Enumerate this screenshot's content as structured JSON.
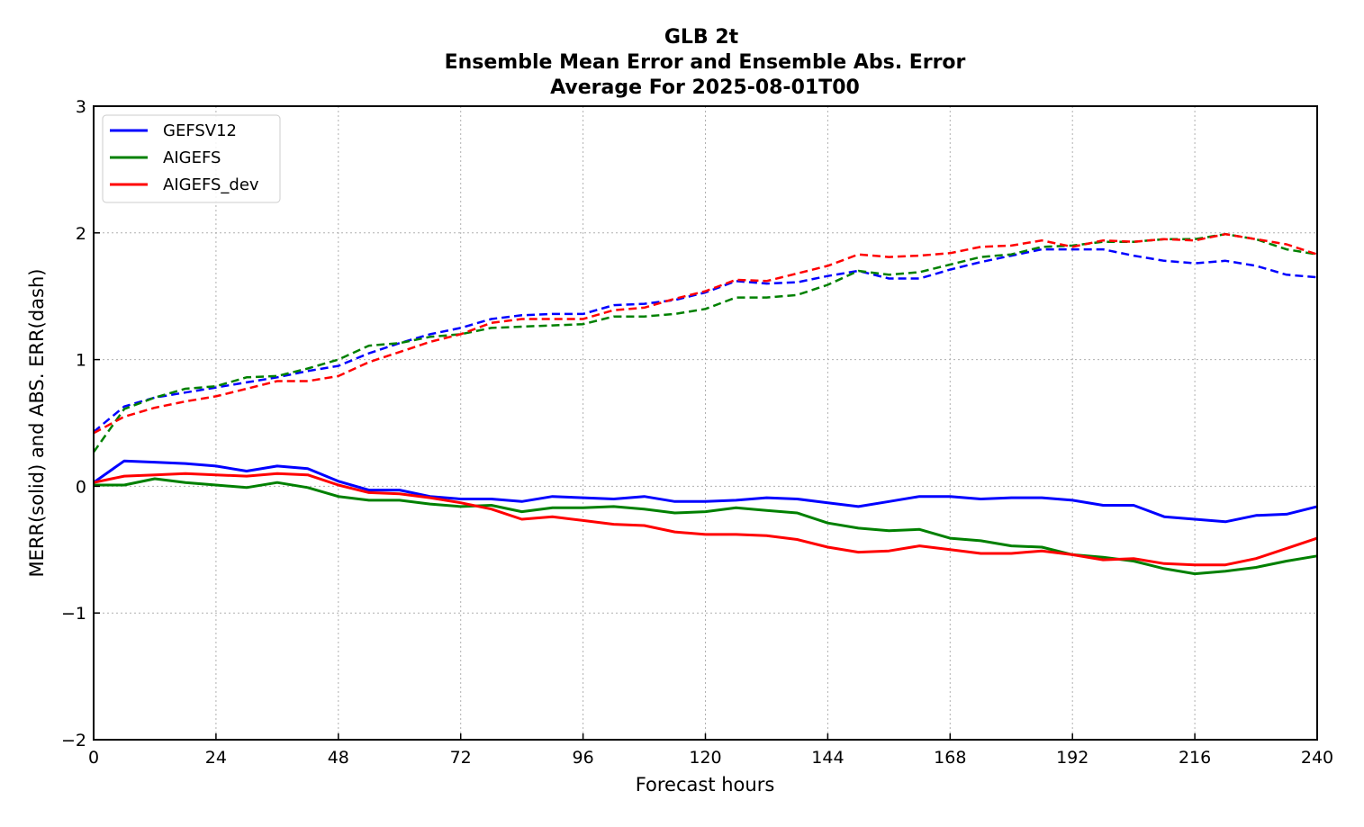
{
  "chart_data": {
    "type": "line",
    "title": [
      "GLB 2t",
      "Ensemble Mean Error and Ensemble Abs. Error",
      "Average For 2025-08-01T00"
    ],
    "xlabel": "Forecast hours",
    "ylabel": "MERR(solid) and ABS. ERR(dash)",
    "xlim": [
      0,
      240
    ],
    "ylim": [
      -2,
      3
    ],
    "xticks": [
      0,
      24,
      48,
      72,
      96,
      120,
      144,
      168,
      192,
      216,
      240
    ],
    "yticks": [
      -2,
      -1,
      0,
      1,
      2,
      3
    ],
    "ytick_labels": [
      "−2",
      "−1",
      "0",
      "1",
      "2",
      "3"
    ],
    "xtick_labels": [
      "0",
      "24",
      "48",
      "72",
      "96",
      "120",
      "144",
      "168",
      "192",
      "216",
      "240"
    ],
    "grid": true,
    "legend_position": "top-left",
    "x": [
      0,
      6,
      12,
      18,
      24,
      30,
      36,
      42,
      48,
      54,
      60,
      66,
      72,
      78,
      84,
      90,
      96,
      102,
      108,
      114,
      120,
      126,
      132,
      138,
      144,
      150,
      156,
      162,
      168,
      174,
      180,
      186,
      192,
      198,
      204,
      210,
      216,
      222,
      228,
      234,
      240
    ],
    "series": [
      {
        "name": "GEFSV12",
        "color": "#0000ff",
        "merr": [
          0.03,
          0.2,
          0.19,
          0.18,
          0.16,
          0.12,
          0.16,
          0.14,
          0.04,
          -0.03,
          -0.03,
          -0.08,
          -0.1,
          -0.1,
          -0.12,
          -0.08,
          -0.09,
          -0.1,
          -0.08,
          -0.12,
          -0.12,
          -0.11,
          -0.09,
          -0.1,
          -0.13,
          -0.16,
          -0.12,
          -0.08,
          -0.08,
          -0.1,
          -0.09,
          -0.09,
          -0.11,
          -0.15,
          -0.15,
          -0.24,
          -0.26,
          -0.28,
          -0.23,
          -0.22,
          -0.16
        ],
        "abs_err": [
          0.43,
          0.63,
          0.7,
          0.74,
          0.78,
          0.82,
          0.86,
          0.91,
          0.95,
          1.05,
          1.13,
          1.2,
          1.25,
          1.32,
          1.35,
          1.36,
          1.36,
          1.43,
          1.44,
          1.47,
          1.53,
          1.62,
          1.6,
          1.61,
          1.66,
          1.7,
          1.64,
          1.64,
          1.71,
          1.77,
          1.82,
          1.87,
          1.87,
          1.87,
          1.82,
          1.78,
          1.76,
          1.78,
          1.74,
          1.67,
          1.65
        ]
      },
      {
        "name": "AIGEFS",
        "color": "#008000",
        "merr": [
          0.01,
          0.01,
          0.06,
          0.03,
          0.01,
          -0.01,
          0.03,
          -0.01,
          -0.08,
          -0.11,
          -0.11,
          -0.14,
          -0.16,
          -0.15,
          -0.2,
          -0.17,
          -0.17,
          -0.16,
          -0.18,
          -0.21,
          -0.2,
          -0.17,
          -0.19,
          -0.21,
          -0.29,
          -0.33,
          -0.35,
          -0.34,
          -0.41,
          -0.43,
          -0.47,
          -0.48,
          -0.54,
          -0.56,
          -0.59,
          -0.65,
          -0.69,
          -0.67,
          -0.64,
          -0.59,
          -0.55
        ],
        "abs_err": [
          0.27,
          0.61,
          0.7,
          0.77,
          0.79,
          0.86,
          0.87,
          0.93,
          1.0,
          1.11,
          1.13,
          1.18,
          1.2,
          1.25,
          1.26,
          1.27,
          1.28,
          1.34,
          1.34,
          1.36,
          1.4,
          1.49,
          1.49,
          1.51,
          1.59,
          1.7,
          1.67,
          1.69,
          1.75,
          1.81,
          1.83,
          1.89,
          1.9,
          1.93,
          1.93,
          1.95,
          1.95,
          1.99,
          1.95,
          1.87,
          1.83
        ]
      },
      {
        "name": "AIGEFS_dev",
        "color": "#ff0000",
        "merr": [
          0.03,
          0.08,
          0.09,
          0.1,
          0.09,
          0.08,
          0.1,
          0.09,
          0.01,
          -0.05,
          -0.06,
          -0.09,
          -0.13,
          -0.18,
          -0.26,
          -0.24,
          -0.27,
          -0.3,
          -0.31,
          -0.36,
          -0.38,
          -0.38,
          -0.39,
          -0.42,
          -0.48,
          -0.52,
          -0.51,
          -0.47,
          -0.5,
          -0.53,
          -0.53,
          -0.51,
          -0.54,
          -0.58,
          -0.57,
          -0.61,
          -0.62,
          -0.62,
          -0.57,
          -0.49,
          -0.41
        ],
        "abs_err": [
          0.42,
          0.55,
          0.62,
          0.67,
          0.71,
          0.77,
          0.83,
          0.83,
          0.87,
          0.98,
          1.06,
          1.14,
          1.2,
          1.29,
          1.32,
          1.32,
          1.32,
          1.39,
          1.41,
          1.48,
          1.54,
          1.63,
          1.62,
          1.68,
          1.74,
          1.83,
          1.81,
          1.82,
          1.84,
          1.89,
          1.9,
          1.94,
          1.89,
          1.94,
          1.93,
          1.95,
          1.94,
          1.99,
          1.95,
          1.91,
          1.83
        ]
      }
    ]
  }
}
